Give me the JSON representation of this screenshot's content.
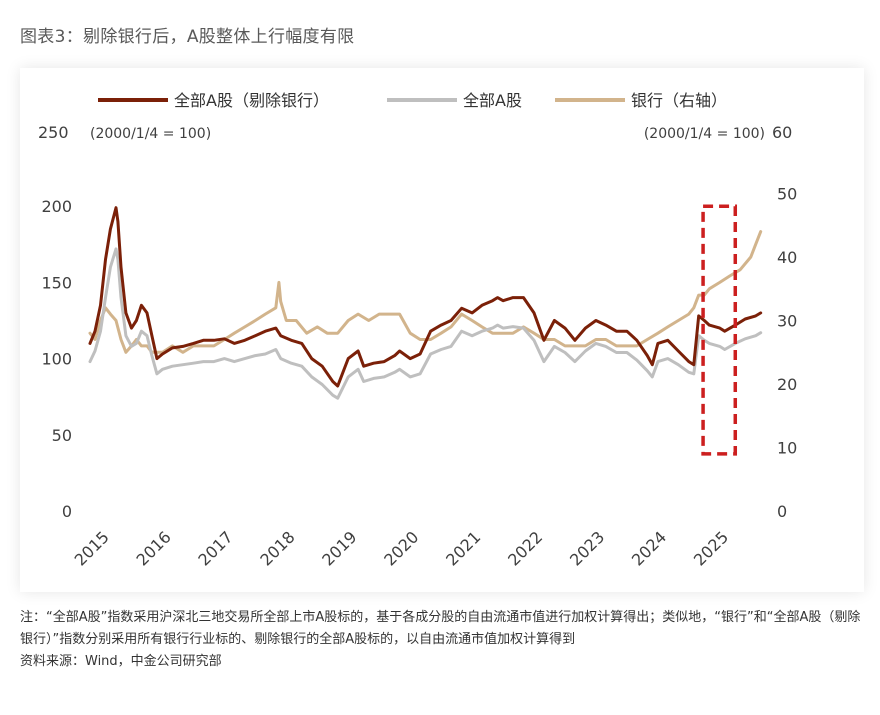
{
  "page": {
    "title": "图表3：剔除银行后，A股整体上行幅度有限",
    "note": "注：“全部A股”指数采用沪深北三地交易所全部上市A股标的，基于各成分股的自由流通市值进行加权计算得出；类似地，“银行”和“全部A股（剔除银行）”指数分别采用所有银行行业标的、剔除银行的全部A股标的，以自由流通市值加权计算得到",
    "source": "资料来源：Wind，中金公司研究部"
  },
  "colors": {
    "ex_bank": "#7b2008",
    "all_a": "#bfbfbf",
    "bank": "#d2b48c",
    "highlight": "#cc1f1f",
    "axis_text": "#404040"
  },
  "chart_data": {
    "type": "line",
    "left_axis": {
      "ylim": [
        0,
        250
      ],
      "ticks": [
        0,
        50,
        100,
        150,
        200,
        250
      ],
      "unit_note": "(2000/1/4 = 100)"
    },
    "right_axis": {
      "ylim": [
        0,
        60
      ],
      "ticks": [
        0,
        10,
        20,
        30,
        40,
        50,
        60
      ],
      "unit_note": "(2000/1/4 = 100)"
    },
    "x_axis": {
      "xlim": [
        2015.0,
        2025.9
      ],
      "tick_labels": [
        "2015",
        "2016",
        "2017",
        "2018",
        "2019",
        "2020",
        "2021",
        "2022",
        "2023",
        "2024",
        "2025"
      ]
    },
    "grid": false,
    "legend_position": "top",
    "highlight_box": {
      "x_range": [
        2024.9,
        2025.42
      ],
      "y_range_right": [
        9,
        48
      ]
    },
    "series": [
      {
        "name": "全部A股（剔除银行）",
        "axis": "left",
        "points": [
          [
            2015.0,
            110
          ],
          [
            2015.08,
            118
          ],
          [
            2015.17,
            135
          ],
          [
            2015.25,
            165
          ],
          [
            2015.33,
            185
          ],
          [
            2015.42,
            199
          ],
          [
            2015.45,
            190
          ],
          [
            2015.5,
            160
          ],
          [
            2015.58,
            130
          ],
          [
            2015.67,
            120
          ],
          [
            2015.75,
            125
          ],
          [
            2015.83,
            135
          ],
          [
            2015.92,
            130
          ],
          [
            2016.0,
            115
          ],
          [
            2016.08,
            100
          ],
          [
            2016.17,
            103
          ],
          [
            2016.33,
            107
          ],
          [
            2016.5,
            108
          ],
          [
            2016.67,
            110
          ],
          [
            2016.83,
            112
          ],
          [
            2017.0,
            112
          ],
          [
            2017.17,
            113
          ],
          [
            2017.33,
            110
          ],
          [
            2017.5,
            112
          ],
          [
            2017.67,
            115
          ],
          [
            2017.83,
            118
          ],
          [
            2018.0,
            120
          ],
          [
            2018.08,
            115
          ],
          [
            2018.25,
            112
          ],
          [
            2018.42,
            110
          ],
          [
            2018.58,
            100
          ],
          [
            2018.75,
            95
          ],
          [
            2018.92,
            85
          ],
          [
            2019.0,
            82
          ],
          [
            2019.17,
            100
          ],
          [
            2019.33,
            105
          ],
          [
            2019.42,
            95
          ],
          [
            2019.58,
            97
          ],
          [
            2019.75,
            98
          ],
          [
            2019.92,
            102
          ],
          [
            2020.0,
            105
          ],
          [
            2020.17,
            100
          ],
          [
            2020.33,
            103
          ],
          [
            2020.5,
            118
          ],
          [
            2020.67,
            122
          ],
          [
            2020.83,
            125
          ],
          [
            2021.0,
            133
          ],
          [
            2021.17,
            130
          ],
          [
            2021.33,
            135
          ],
          [
            2021.5,
            138
          ],
          [
            2021.58,
            140
          ],
          [
            2021.67,
            138
          ],
          [
            2021.83,
            140
          ],
          [
            2022.0,
            140
          ],
          [
            2022.17,
            130
          ],
          [
            2022.33,
            112
          ],
          [
            2022.5,
            125
          ],
          [
            2022.67,
            120
          ],
          [
            2022.83,
            112
          ],
          [
            2023.0,
            120
          ],
          [
            2023.17,
            125
          ],
          [
            2023.33,
            122
          ],
          [
            2023.5,
            118
          ],
          [
            2023.67,
            118
          ],
          [
            2023.83,
            112
          ],
          [
            2024.0,
            102
          ],
          [
            2024.08,
            96
          ],
          [
            2024.17,
            110
          ],
          [
            2024.33,
            112
          ],
          [
            2024.5,
            105
          ],
          [
            2024.67,
            98
          ],
          [
            2024.75,
            96
          ],
          [
            2024.83,
            128
          ],
          [
            2024.92,
            125
          ],
          [
            2025.0,
            122
          ],
          [
            2025.17,
            120
          ],
          [
            2025.25,
            118
          ],
          [
            2025.42,
            122
          ],
          [
            2025.58,
            126
          ],
          [
            2025.75,
            128
          ],
          [
            2025.83,
            130
          ]
        ]
      },
      {
        "name": "全部A股",
        "axis": "left",
        "points": [
          [
            2015.0,
            98
          ],
          [
            2015.08,
            105
          ],
          [
            2015.17,
            118
          ],
          [
            2015.25,
            140
          ],
          [
            2015.33,
            160
          ],
          [
            2015.42,
            172
          ],
          [
            2015.45,
            165
          ],
          [
            2015.5,
            140
          ],
          [
            2015.58,
            115
          ],
          [
            2015.67,
            108
          ],
          [
            2015.75,
            110
          ],
          [
            2015.83,
            118
          ],
          [
            2015.92,
            115
          ],
          [
            2016.0,
            102
          ],
          [
            2016.08,
            90
          ],
          [
            2016.17,
            93
          ],
          [
            2016.33,
            95
          ],
          [
            2016.5,
            96
          ],
          [
            2016.67,
            97
          ],
          [
            2016.83,
            98
          ],
          [
            2017.0,
            98
          ],
          [
            2017.17,
            100
          ],
          [
            2017.33,
            98
          ],
          [
            2017.5,
            100
          ],
          [
            2017.67,
            102
          ],
          [
            2017.83,
            103
          ],
          [
            2018.0,
            106
          ],
          [
            2018.08,
            100
          ],
          [
            2018.25,
            97
          ],
          [
            2018.42,
            95
          ],
          [
            2018.58,
            88
          ],
          [
            2018.75,
            83
          ],
          [
            2018.92,
            76
          ],
          [
            2019.0,
            74
          ],
          [
            2019.17,
            88
          ],
          [
            2019.33,
            93
          ],
          [
            2019.42,
            85
          ],
          [
            2019.58,
            87
          ],
          [
            2019.75,
            88
          ],
          [
            2019.92,
            91
          ],
          [
            2020.0,
            93
          ],
          [
            2020.17,
            88
          ],
          [
            2020.33,
            90
          ],
          [
            2020.5,
            103
          ],
          [
            2020.67,
            106
          ],
          [
            2020.83,
            108
          ],
          [
            2021.0,
            118
          ],
          [
            2021.17,
            115
          ],
          [
            2021.33,
            118
          ],
          [
            2021.5,
            120
          ],
          [
            2021.58,
            122
          ],
          [
            2021.67,
            120
          ],
          [
            2021.83,
            121
          ],
          [
            2022.0,
            120
          ],
          [
            2022.17,
            112
          ],
          [
            2022.33,
            98
          ],
          [
            2022.5,
            108
          ],
          [
            2022.67,
            104
          ],
          [
            2022.83,
            98
          ],
          [
            2023.0,
            105
          ],
          [
            2023.17,
            110
          ],
          [
            2023.33,
            108
          ],
          [
            2023.5,
            104
          ],
          [
            2023.67,
            104
          ],
          [
            2023.83,
            99
          ],
          [
            2024.0,
            92
          ],
          [
            2024.08,
            88
          ],
          [
            2024.17,
            98
          ],
          [
            2024.33,
            100
          ],
          [
            2024.5,
            96
          ],
          [
            2024.67,
            91
          ],
          [
            2024.75,
            90
          ],
          [
            2024.83,
            115
          ],
          [
            2024.92,
            112
          ],
          [
            2025.0,
            110
          ],
          [
            2025.17,
            108
          ],
          [
            2025.25,
            106
          ],
          [
            2025.42,
            110
          ],
          [
            2025.58,
            113
          ],
          [
            2025.75,
            115
          ],
          [
            2025.83,
            117
          ]
        ]
      },
      {
        "name": "银行（右轴）",
        "axis": "right",
        "points": [
          [
            2015.0,
            28
          ],
          [
            2015.08,
            27
          ],
          [
            2015.17,
            30
          ],
          [
            2015.25,
            32
          ],
          [
            2015.33,
            31
          ],
          [
            2015.42,
            30
          ],
          [
            2015.5,
            27
          ],
          [
            2015.58,
            25
          ],
          [
            2015.67,
            26
          ],
          [
            2015.75,
            27
          ],
          [
            2015.83,
            26
          ],
          [
            2015.92,
            26
          ],
          [
            2016.0,
            25
          ],
          [
            2016.17,
            25
          ],
          [
            2016.33,
            26
          ],
          [
            2016.5,
            25
          ],
          [
            2016.67,
            26
          ],
          [
            2016.83,
            26
          ],
          [
            2017.0,
            26
          ],
          [
            2017.17,
            27
          ],
          [
            2017.33,
            28
          ],
          [
            2017.5,
            29
          ],
          [
            2017.67,
            30
          ],
          [
            2017.83,
            31
          ],
          [
            2018.0,
            32
          ],
          [
            2018.05,
            36
          ],
          [
            2018.08,
            33
          ],
          [
            2018.17,
            30
          ],
          [
            2018.33,
            30
          ],
          [
            2018.5,
            28
          ],
          [
            2018.67,
            29
          ],
          [
            2018.83,
            28
          ],
          [
            2019.0,
            28
          ],
          [
            2019.17,
            30
          ],
          [
            2019.33,
            31
          ],
          [
            2019.5,
            30
          ],
          [
            2019.67,
            31
          ],
          [
            2019.83,
            31
          ],
          [
            2020.0,
            31
          ],
          [
            2020.17,
            28
          ],
          [
            2020.33,
            27
          ],
          [
            2020.5,
            27
          ],
          [
            2020.67,
            28
          ],
          [
            2020.83,
            29
          ],
          [
            2021.0,
            31
          ],
          [
            2021.17,
            30
          ],
          [
            2021.33,
            29
          ],
          [
            2021.5,
            28
          ],
          [
            2021.67,
            28
          ],
          [
            2021.83,
            28
          ],
          [
            2022.0,
            29
          ],
          [
            2022.17,
            28
          ],
          [
            2022.33,
            27
          ],
          [
            2022.5,
            27
          ],
          [
            2022.67,
            26
          ],
          [
            2022.83,
            26
          ],
          [
            2023.0,
            26
          ],
          [
            2023.17,
            27
          ],
          [
            2023.33,
            27
          ],
          [
            2023.5,
            26
          ],
          [
            2023.67,
            26
          ],
          [
            2023.83,
            26
          ],
          [
            2024.0,
            27
          ],
          [
            2024.17,
            28
          ],
          [
            2024.33,
            29
          ],
          [
            2024.5,
            30
          ],
          [
            2024.67,
            31
          ],
          [
            2024.75,
            32
          ],
          [
            2024.83,
            34
          ],
          [
            2024.92,
            34
          ],
          [
            2025.0,
            35
          ],
          [
            2025.17,
            36
          ],
          [
            2025.33,
            37
          ],
          [
            2025.5,
            38
          ],
          [
            2025.67,
            40
          ],
          [
            2025.75,
            42
          ],
          [
            2025.83,
            44
          ]
        ]
      }
    ]
  }
}
